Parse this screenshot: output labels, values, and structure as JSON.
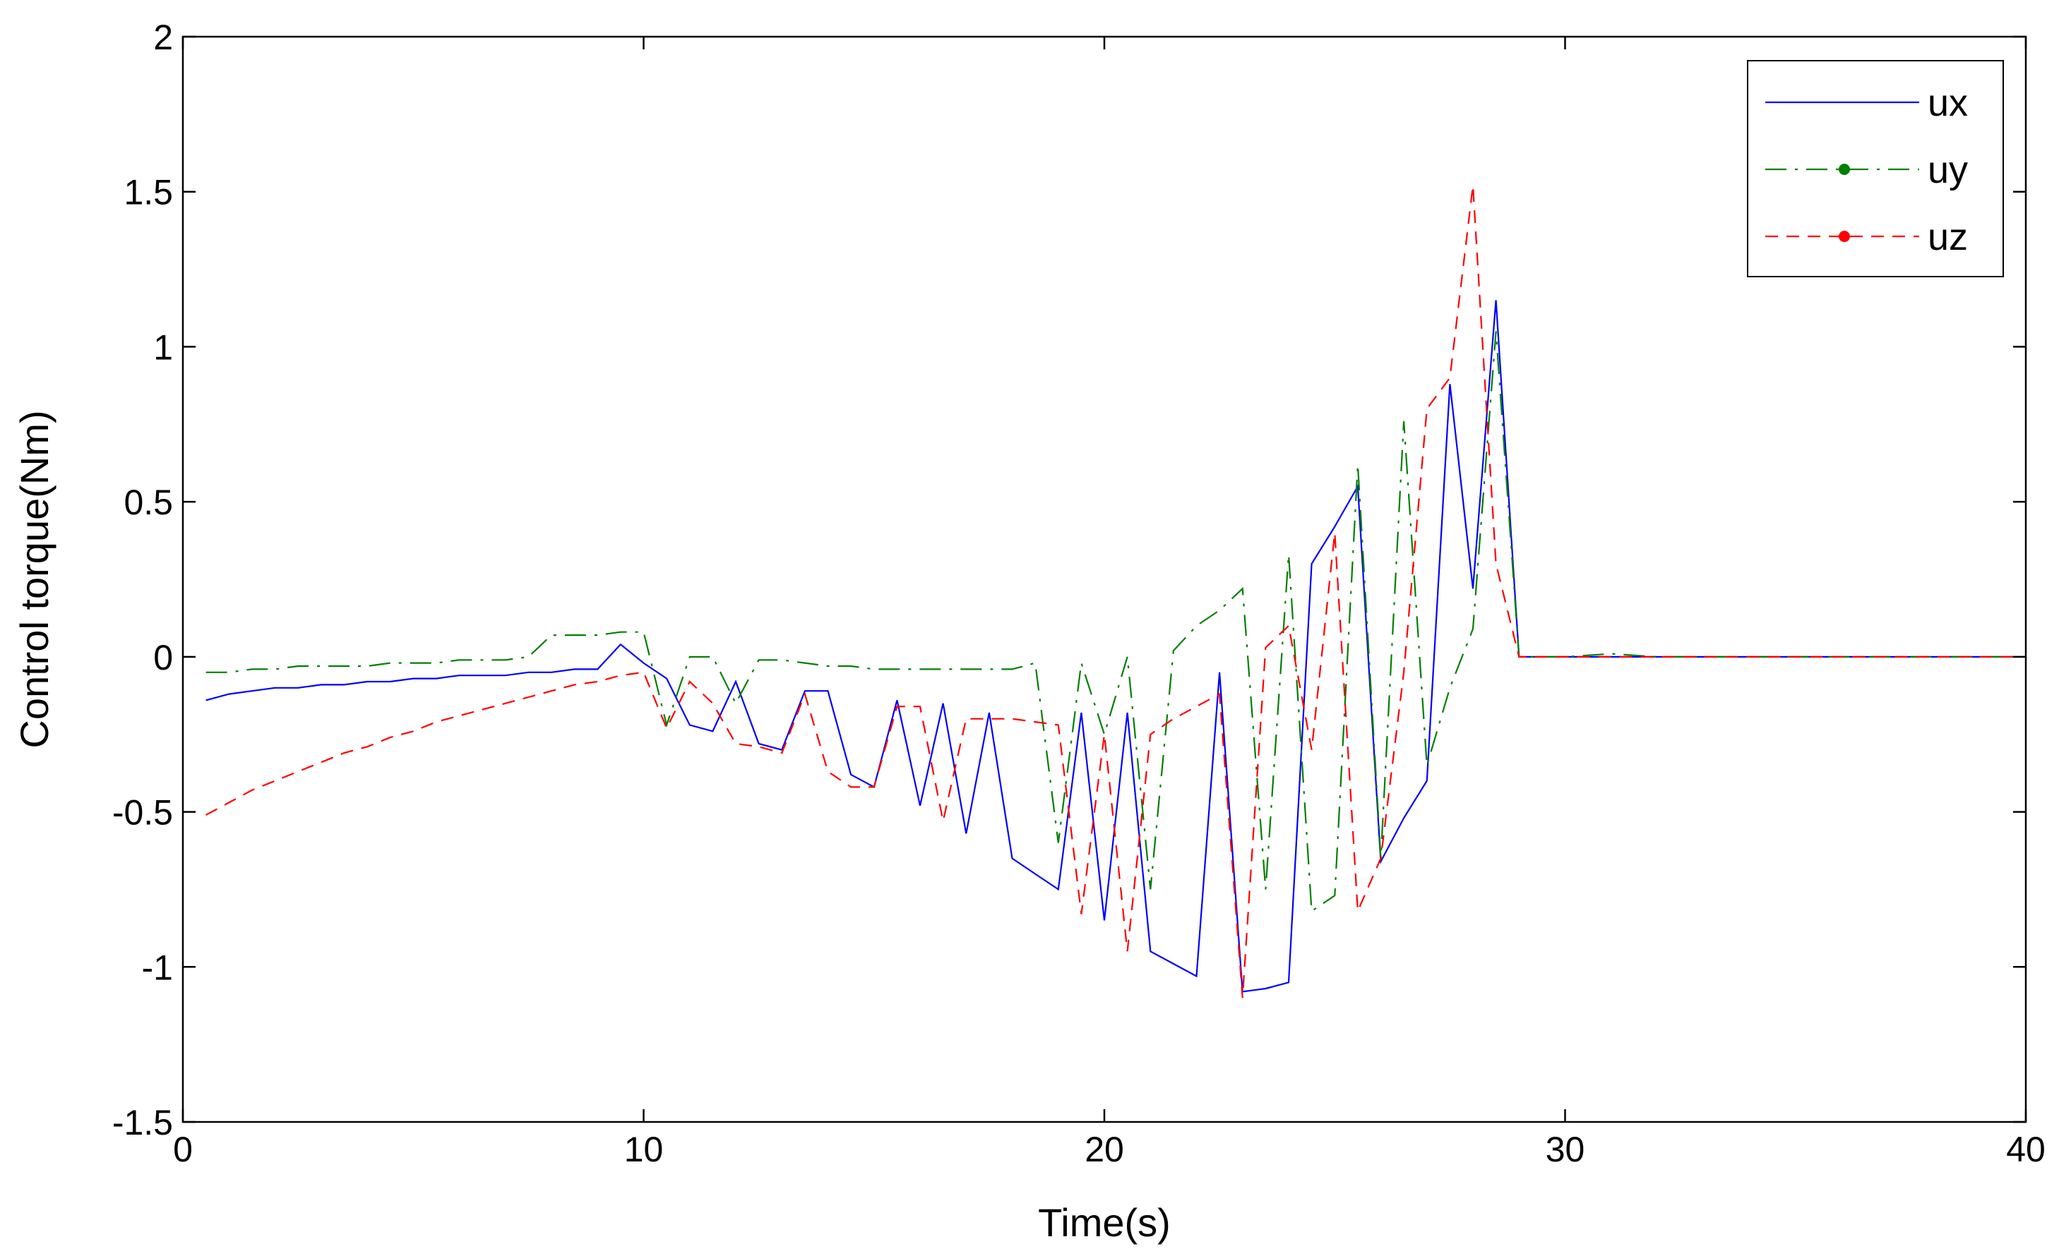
{
  "chart_data": {
    "type": "line",
    "title": "",
    "xlabel": "Time(s)",
    "ylabel": "Control torque(Nm)",
    "xlim": [
      0,
      40
    ],
    "ylim": [
      -1.5,
      2
    ],
    "xticks": [
      0,
      10,
      20,
      30,
      40
    ],
    "xtick_labels": [
      "0",
      "10",
      "20",
      "30",
      "40"
    ],
    "yticks": [
      -1.5,
      -1,
      -0.5,
      0,
      0.5,
      1,
      1.5,
      2
    ],
    "ytick_labels": [
      "-1.5",
      "-1",
      "-0.5",
      "0",
      "0.5",
      "1",
      "1.5",
      "2"
    ],
    "grid": false,
    "legend_position": "top-right",
    "series": [
      {
        "name": "ux",
        "color": "#0000ff",
        "style": "solid",
        "x": [
          0.5,
          1,
          1.5,
          2,
          2.5,
          3,
          3.5,
          4,
          4.5,
          5,
          5.5,
          6,
          6.5,
          7,
          7.5,
          8,
          8.5,
          9,
          9.5,
          10,
          10.5,
          11,
          11.5,
          12,
          12.5,
          13,
          13.5,
          14,
          14.5,
          15,
          15.5,
          16,
          16.5,
          17,
          17.5,
          18,
          18.5,
          19,
          19.5,
          20,
          20.5,
          21,
          21.5,
          22,
          22.5,
          23,
          23.5,
          24,
          24.5,
          25,
          25.5,
          26,
          26.5,
          27,
          27.5,
          28,
          28.5,
          29,
          30,
          31,
          32,
          33,
          34,
          35,
          36,
          37,
          38,
          39,
          40
        ],
        "values": [
          -0.14,
          -0.12,
          -0.11,
          -0.1,
          -0.1,
          -0.09,
          -0.09,
          -0.08,
          -0.08,
          -0.07,
          -0.07,
          -0.06,
          -0.06,
          -0.06,
          -0.05,
          -0.05,
          -0.04,
          -0.04,
          0.04,
          -0.02,
          -0.07,
          -0.22,
          -0.24,
          -0.08,
          -0.28,
          -0.3,
          -0.11,
          -0.11,
          -0.38,
          -0.42,
          -0.14,
          -0.48,
          -0.15,
          -0.57,
          -0.18,
          -0.65,
          -0.7,
          -0.75,
          -0.18,
          -0.85,
          -0.18,
          -0.95,
          -0.99,
          -1.03,
          -0.05,
          -1.08,
          -1.07,
          -1.05,
          0.3,
          0.42,
          0.55,
          -0.66,
          -0.52,
          -0.4,
          0.88,
          0.22,
          1.15,
          0.0,
          0.0,
          0.0,
          0.0,
          0.0,
          0.0,
          0.0,
          0.0,
          0.0,
          0.0,
          0.0,
          0.0
        ]
      },
      {
        "name": "uy",
        "color": "#008000",
        "style": "dash-dot",
        "x": [
          0.5,
          1,
          1.5,
          2,
          2.5,
          3,
          3.5,
          4,
          4.5,
          5,
          5.5,
          6,
          6.5,
          7,
          7.5,
          8,
          8.5,
          9,
          9.5,
          10,
          10.5,
          11,
          11.5,
          12,
          12.5,
          13,
          13.5,
          14,
          14.5,
          15,
          15.5,
          16,
          16.5,
          17,
          17.5,
          18,
          18.5,
          19,
          19.5,
          20,
          20.5,
          21,
          21.5,
          22,
          22.5,
          23,
          23.5,
          24,
          24.5,
          25,
          25.5,
          26,
          26.5,
          27,
          27.5,
          28,
          28.5,
          29,
          30,
          31,
          32,
          33,
          34,
          35,
          36,
          37,
          38,
          39,
          40
        ],
        "values": [
          -0.05,
          -0.05,
          -0.04,
          -0.04,
          -0.03,
          -0.03,
          -0.03,
          -0.03,
          -0.02,
          -0.02,
          -0.02,
          -0.01,
          -0.01,
          -0.01,
          0.0,
          0.07,
          0.07,
          0.07,
          0.08,
          0.08,
          -0.22,
          0.0,
          0.0,
          -0.15,
          -0.01,
          -0.01,
          -0.02,
          -0.03,
          -0.03,
          -0.04,
          -0.04,
          -0.04,
          -0.04,
          -0.04,
          -0.04,
          -0.04,
          -0.02,
          -0.6,
          -0.02,
          -0.25,
          -0.0,
          -0.75,
          0.02,
          0.1,
          0.15,
          0.22,
          -0.75,
          0.33,
          -0.82,
          -0.77,
          0.62,
          -0.65,
          0.76,
          -0.35,
          -0.1,
          0.09,
          1.05,
          0.0,
          0.0,
          0.01,
          0.0,
          0.0,
          0.0,
          0.0,
          0.0,
          0.0,
          0.0,
          0.0,
          0.0
        ]
      },
      {
        "name": "uz",
        "color": "#ff0000",
        "style": "dashed",
        "x": [
          0.5,
          1,
          1.5,
          2,
          2.5,
          3,
          3.5,
          4,
          4.5,
          5,
          5.5,
          6,
          6.5,
          7,
          7.5,
          8,
          8.5,
          9,
          9.5,
          10,
          10.5,
          11,
          11.5,
          12,
          12.5,
          13,
          13.5,
          14,
          14.5,
          15,
          15.5,
          16,
          16.5,
          17,
          17.5,
          18,
          18.5,
          19,
          19.5,
          20,
          20.5,
          21,
          21.5,
          22,
          22.5,
          23,
          23.5,
          24,
          24.5,
          25,
          25.5,
          26,
          26.5,
          27,
          27.5,
          28,
          28.5,
          29,
          30,
          31,
          32,
          33,
          34,
          35,
          36,
          37,
          38,
          39,
          40
        ],
        "values": [
          -0.51,
          -0.47,
          -0.43,
          -0.4,
          -0.37,
          -0.34,
          -0.31,
          -0.29,
          -0.26,
          -0.24,
          -0.21,
          -0.19,
          -0.17,
          -0.15,
          -0.13,
          -0.11,
          -0.09,
          -0.08,
          -0.06,
          -0.05,
          -0.23,
          -0.08,
          -0.15,
          -0.28,
          -0.29,
          -0.31,
          -0.12,
          -0.37,
          -0.42,
          -0.42,
          -0.16,
          -0.16,
          -0.53,
          -0.2,
          -0.2,
          -0.2,
          -0.21,
          -0.22,
          -0.83,
          -0.25,
          -0.95,
          -0.25,
          -0.2,
          -0.16,
          -0.12,
          -1.1,
          0.03,
          0.1,
          -0.3,
          0.4,
          -0.82,
          -0.65,
          -0.05,
          0.8,
          0.9,
          1.52,
          0.3,
          0.0,
          0.0,
          0.0,
          0.0,
          0.0,
          0.0,
          0.0,
          0.0,
          0.0,
          0.0,
          0.0,
          0.0
        ]
      }
    ]
  }
}
